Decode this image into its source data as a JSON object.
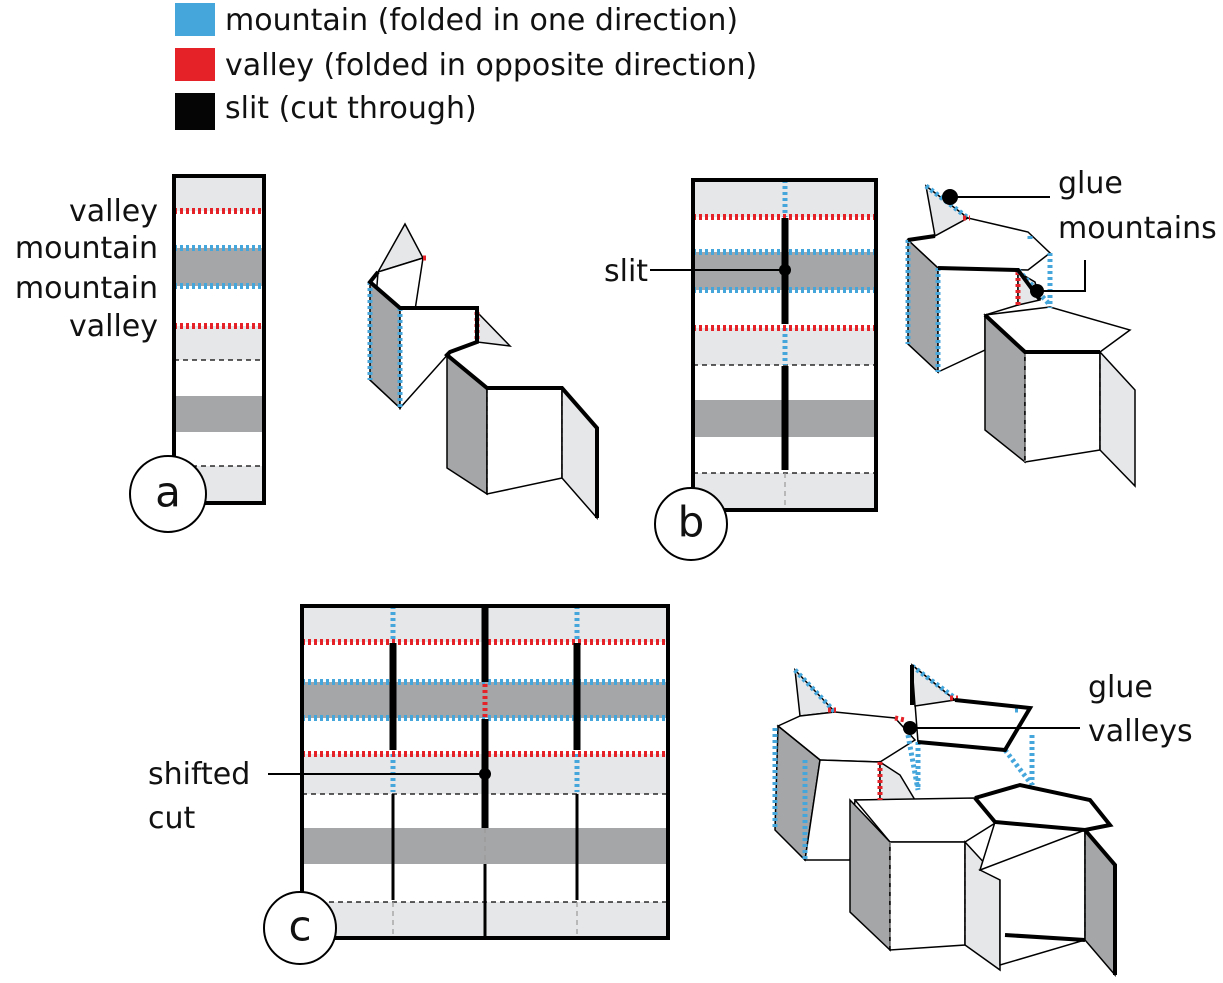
{
  "legend": {
    "items": [
      {
        "label": "mountain (folded in one direction)",
        "color": "#45a6dc"
      },
      {
        "label": "valley (folded in opposite direction)",
        "color": "#e52228"
      },
      {
        "label": "slit (cut through)",
        "color": "#000000"
      }
    ]
  },
  "panel_a": {
    "badge": "a",
    "crease_labels": [
      "valley",
      "mountain",
      "mountain",
      "valley"
    ]
  },
  "panel_b": {
    "badge": "b",
    "slit_label": "slit",
    "glue_label_line1": "glue",
    "glue_label_line2": "mountains"
  },
  "panel_c": {
    "badge": "c",
    "cut_label_line1": "shifted",
    "cut_label_line2": "cut",
    "glue_label_line1": "glue",
    "glue_label_line2": "valleys"
  }
}
